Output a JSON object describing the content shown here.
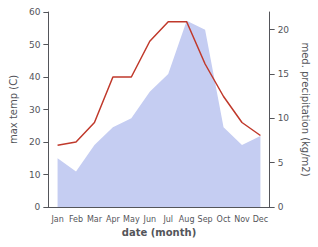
{
  "chart_data": {
    "type": "line",
    "xlabel": "date (month)",
    "ylabel": "max temp (C)",
    "y2label": "med. precipitation (kg/m2)",
    "categories": [
      "Jan",
      "Feb",
      "Mar",
      "Apr",
      "May",
      "Jun",
      "Jul",
      "Aug",
      "Sep",
      "Oct",
      "Nov",
      "Dec"
    ],
    "series": [
      {
        "type": "area",
        "axis": "y2",
        "color": "#c5cdf2",
        "values": [
          5.5,
          4.0,
          7,
          9,
          10,
          13,
          15,
          21,
          20,
          9,
          7,
          8
        ]
      },
      {
        "type": "line",
        "color": "#c0392b",
        "values": [
          19,
          20,
          26,
          40,
          40,
          51,
          57,
          57,
          44,
          34,
          26,
          22
        ]
      }
    ],
    "ylim": [
      0,
      60
    ],
    "yticks": [
      0,
      10,
      20,
      30,
      40,
      50,
      60
    ],
    "y2lim": [
      0,
      22
    ],
    "y2ticks": [
      0,
      5,
      10,
      15,
      20
    ],
    "grid": false
  }
}
